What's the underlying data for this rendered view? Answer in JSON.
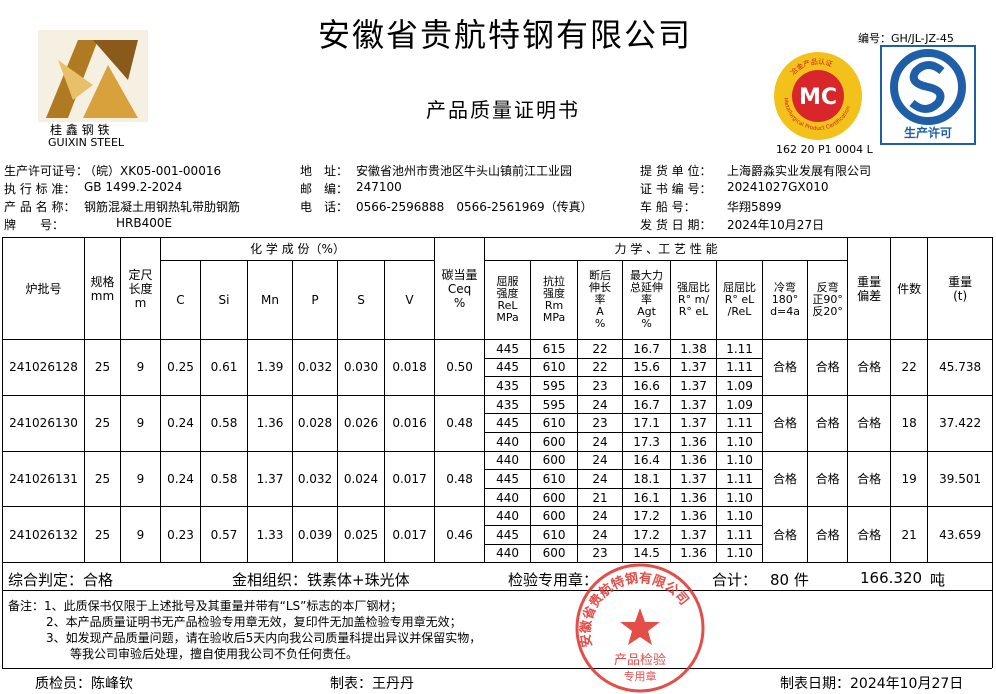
{
  "header": {
    "company": "安徽省贵航特钢有限公司",
    "doc_title": "产品质量证明书",
    "logo_cn": "桂 鑫 钢 铁",
    "logo_en": "GUIXIN STEEL",
    "doc_no": "编号：GH/JL-JZ-45",
    "mc_mark": "MC",
    "mc_ring_cn": "冶金产品认证",
    "mc_ring_en": "Metallurgical Product Certification",
    "mc_code": "162 20 P1 0004 L",
    "qs_text": "生产许可"
  },
  "info": [
    [
      {
        "label": "生产许可证号：",
        "value": "（皖）XK05-001-00016"
      },
      {
        "label": "地　址：",
        "value": "安徽省池州市贵池区牛头山镇前江工业园"
      },
      {
        "label": "提 货 单 位：",
        "value": "上海爵淼实业发展有限公司"
      }
    ],
    [
      {
        "label": "执 行 标 准：",
        "value": "GB 1499.2-2024"
      },
      {
        "label": "邮　编：",
        "value": "247100"
      },
      {
        "label": "证 书 编 号：",
        "value": "20241027GX010"
      }
    ],
    [
      {
        "label": "产 品 名 称：",
        "value": "钢筋混凝土用钢热轧带肋钢筋"
      },
      {
        "label": "电　话：",
        "value": "0566-2596888　0566-2561969（传真）"
      },
      {
        "label": "车 船 号：",
        "value": "华翔5899"
      }
    ],
    [
      {
        "label": "牌　　号：",
        "value": "HRB400E"
      },
      {
        "label": "发 货 日 期：",
        "value": "2024年10月27日"
      }
    ]
  ],
  "table": {
    "headers": {
      "batch": "炉批号",
      "spec": "规格\nmm",
      "length": "定尺\n长度\nm",
      "chem_title": "化 学 成 份（%）",
      "chem": [
        "C",
        "Si",
        "Mn",
        "P",
        "S",
        "V"
      ],
      "ceq": "碳当量\nCeq\n%",
      "mech_title": "力 学 、工 艺 性 能",
      "mech": [
        "屈服\n强度\nReL\nMPa",
        "抗拉\n强度\nRm\nMPa",
        "断后\n伸长\n率\nA\n%",
        "最大力\n总延伸\n率\nAgt\n%",
        "强屈比\nR° m/\nR° eL",
        "屈屈比\nR° eL\n/ReL",
        "冷弯\n180°\nd=4a",
        "反弯\n正90°\n反20°"
      ],
      "weight_dev": "重量\n偏差",
      "pieces": "件数",
      "weight": "重量\n(t)"
    },
    "rows": [
      {
        "batch": "241026128",
        "spec": "25",
        "length": "9",
        "chem": [
          "0.25",
          "0.61",
          "1.39",
          "0.032",
          "0.030",
          "0.018"
        ],
        "ceq": "0.50",
        "tests": [
          [
            "445",
            "615",
            "22",
            "16.7",
            "1.38",
            "1.11"
          ],
          [
            "445",
            "610",
            "22",
            "15.6",
            "1.37",
            "1.11"
          ],
          [
            "435",
            "595",
            "23",
            "16.6",
            "1.37",
            "1.09"
          ]
        ],
        "bend": "合格",
        "rebend": "合格",
        "weight_dev": "合格",
        "pieces": "22",
        "weight": "45.738"
      },
      {
        "batch": "241026130",
        "spec": "25",
        "length": "9",
        "chem": [
          "0.24",
          "0.58",
          "1.36",
          "0.028",
          "0.026",
          "0.016"
        ],
        "ceq": "0.48",
        "tests": [
          [
            "435",
            "595",
            "24",
            "16.7",
            "1.37",
            "1.09"
          ],
          [
            "445",
            "610",
            "23",
            "17.1",
            "1.37",
            "1.11"
          ],
          [
            "440",
            "600",
            "24",
            "17.3",
            "1.36",
            "1.10"
          ]
        ],
        "bend": "合格",
        "rebend": "合格",
        "weight_dev": "合格",
        "pieces": "18",
        "weight": "37.422"
      },
      {
        "batch": "241026131",
        "spec": "25",
        "length": "9",
        "chem": [
          "0.24",
          "0.58",
          "1.37",
          "0.032",
          "0.024",
          "0.017"
        ],
        "ceq": "0.48",
        "tests": [
          [
            "440",
            "600",
            "24",
            "16.4",
            "1.36",
            "1.10"
          ],
          [
            "445",
            "610",
            "24",
            "18.1",
            "1.37",
            "1.11"
          ],
          [
            "440",
            "600",
            "21",
            "16.1",
            "1.36",
            "1.10"
          ]
        ],
        "bend": "合格",
        "rebend": "合格",
        "weight_dev": "合格",
        "pieces": "19",
        "weight": "39.501"
      },
      {
        "batch": "241026132",
        "spec": "25",
        "length": "9",
        "chem": [
          "0.23",
          "0.57",
          "1.33",
          "0.039",
          "0.025",
          "0.017"
        ],
        "ceq": "0.46",
        "tests": [
          [
            "440",
            "600",
            "24",
            "17.2",
            "1.36",
            "1.10"
          ],
          [
            "445",
            "610",
            "24",
            "17.2",
            "1.37",
            "1.11"
          ],
          [
            "440",
            "600",
            "23",
            "14.5",
            "1.36",
            "1.10"
          ]
        ],
        "bend": "合格",
        "rebend": "合格",
        "weight_dev": "合格",
        "pieces": "21",
        "weight": "43.659"
      }
    ]
  },
  "summary": {
    "judgement": "综合判定：合格",
    "structure": "金相组织：铁素体+珠光体",
    "seal_label": "检验专用章：",
    "total_label": "合计：",
    "total_pieces": "80 件",
    "total_weight": "166.320",
    "unit": "吨"
  },
  "notes": [
    "备注：1、此质保书仅限于上述批号及其重量并带有“LS”标志的本厂钢材；",
    "2、本产品质量证明书无产品检验专用章无效，复印件无加盖检验专用章无效；",
    "3、如发现产品质量问题，请在验收后5天内向我公司质量科提出异议并保留实物，",
    "等我公司审验后处理，擅自使用我公司不负任何责任。"
  ],
  "stamp": {
    "ring": "安徽省贵航特钢有限公司",
    "line1": "产品检验",
    "line2": "专用章"
  },
  "footer": {
    "inspector": "质检员：陈峰钦",
    "preparer": "制表：王丹丹",
    "date": "制表日期：2024年10月27日"
  }
}
